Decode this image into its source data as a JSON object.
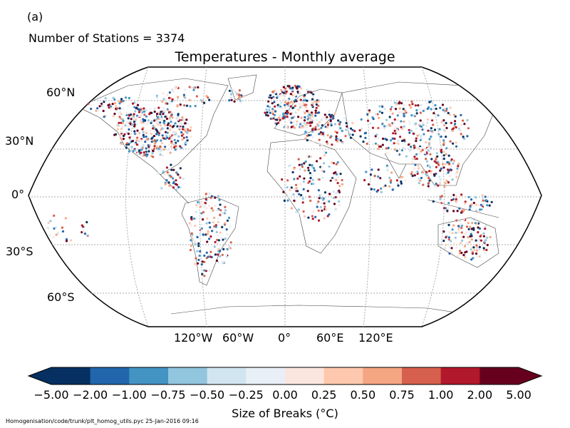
{
  "panel_label": "(a)",
  "station_count": "Number of Stations = 3374",
  "title": "Temperatures - Monthly average",
  "latitude_labels": [
    "60°N",
    "30°N",
    "0°",
    "30°S",
    "60°S"
  ],
  "longitude_labels": [
    "120°W",
    "60°W",
    "0°",
    "60°E",
    "120°E"
  ],
  "colorbar": {
    "label": "Size of Breaks ($^\\circ$C)",
    "label_display": "Size of Breaks (°C)",
    "tick_labels": [
      "−5.00",
      "−2.00",
      "−1.00",
      "−0.75",
      "−0.50",
      "−0.25",
      "0.00",
      "0.25",
      "0.50",
      "0.75",
      "1.00",
      "2.00",
      "5.00"
    ],
    "colors": [
      "#053061",
      "#2166ac",
      "#4393c3",
      "#92c5de",
      "#d1e5f0",
      "#e8eff6",
      "#fbe6df",
      "#fdc8ad",
      "#f4a582",
      "#d6604d",
      "#b2182b",
      "#67001f"
    ],
    "extend": "both"
  },
  "footer": "Homogenisation/code/trunk/plt_homog_utils.pyc   25-Jan-2016 09:16",
  "map": {
    "projection": "Robinson",
    "graticule": "dotted grey"
  }
}
